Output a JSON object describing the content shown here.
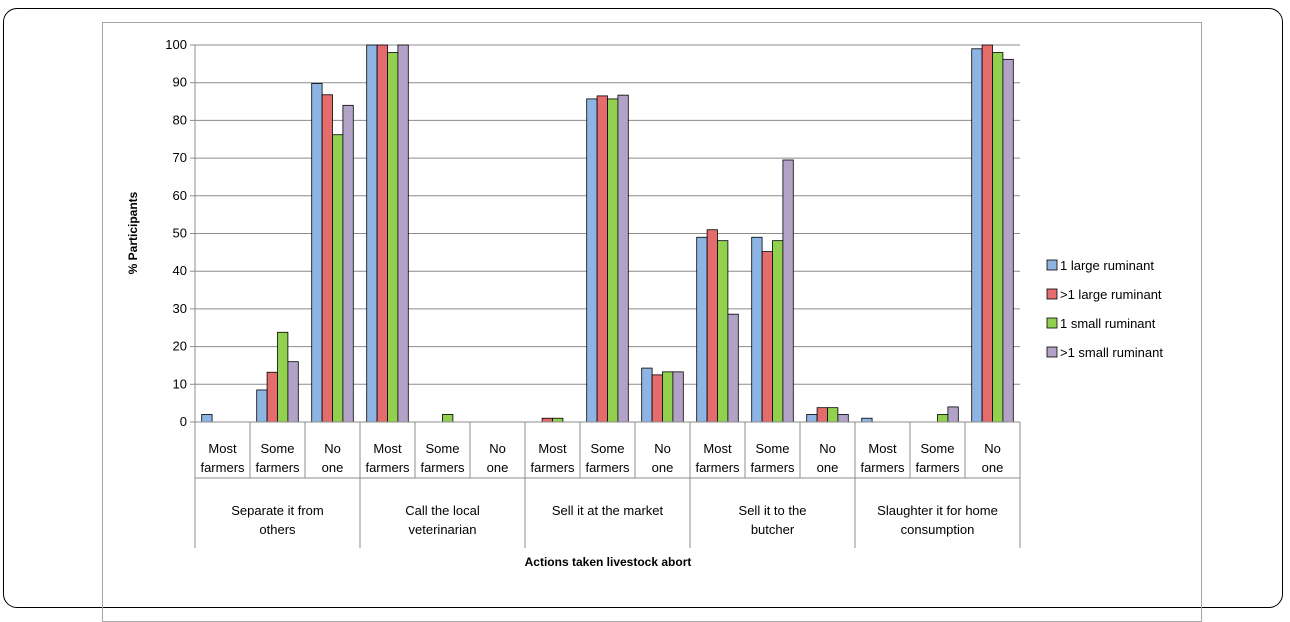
{
  "chart_data": {
    "type": "bar",
    "title": "",
    "xlabel": "Actions taken livestock abort",
    "ylabel": "% Participants",
    "ylim": [
      0,
      100
    ],
    "yticks": [
      0,
      10,
      20,
      30,
      40,
      50,
      60,
      70,
      80,
      90,
      100
    ],
    "grid": true,
    "legend_position": "right",
    "groups": [
      {
        "label": "Separate it from others",
        "categories": [
          "Most farmers",
          "Some farmers",
          "No one"
        ]
      },
      {
        "label": "Call the local veterinarian",
        "categories": [
          "Most farmers",
          "Some farmers",
          "No one"
        ]
      },
      {
        "label": "Sell it at the market",
        "categories": [
          "Most farmers",
          "Some farmers",
          "No one"
        ]
      },
      {
        "label": "Sell it to the butcher",
        "categories": [
          "Most farmers",
          "Some farmers",
          "No one"
        ]
      },
      {
        "label": "Slaughter it for home consumption",
        "categories": [
          "Most farmers",
          "Some farmers",
          "No one"
        ]
      }
    ],
    "series": [
      {
        "name": "1 large ruminant",
        "color": "#8eb4e3",
        "values": [
          2,
          8.5,
          89.8,
          100,
          0,
          0,
          0,
          85.7,
          14.3,
          49,
          49,
          2,
          1,
          0,
          99
        ]
      },
      {
        "name": ">1 large ruminant",
        "color": "#e46c6c",
        "values": [
          0,
          13.2,
          86.8,
          100,
          0,
          0,
          1,
          86.5,
          12.5,
          51,
          45.2,
          3.8,
          0,
          0,
          100
        ]
      },
      {
        "name": "1 small ruminant",
        "color": "#92d050",
        "values": [
          0,
          23.8,
          76.2,
          98,
          2,
          0,
          1,
          85.7,
          13.3,
          48.1,
          48.1,
          3.8,
          0,
          2,
          98
        ]
      },
      {
        "name": ">1 small ruminant",
        "color": "#b3a2c7",
        "values": [
          0,
          16,
          84,
          100,
          0,
          0,
          0,
          86.7,
          13.3,
          28.6,
          69.5,
          2,
          0,
          4,
          96.2
        ]
      }
    ]
  }
}
